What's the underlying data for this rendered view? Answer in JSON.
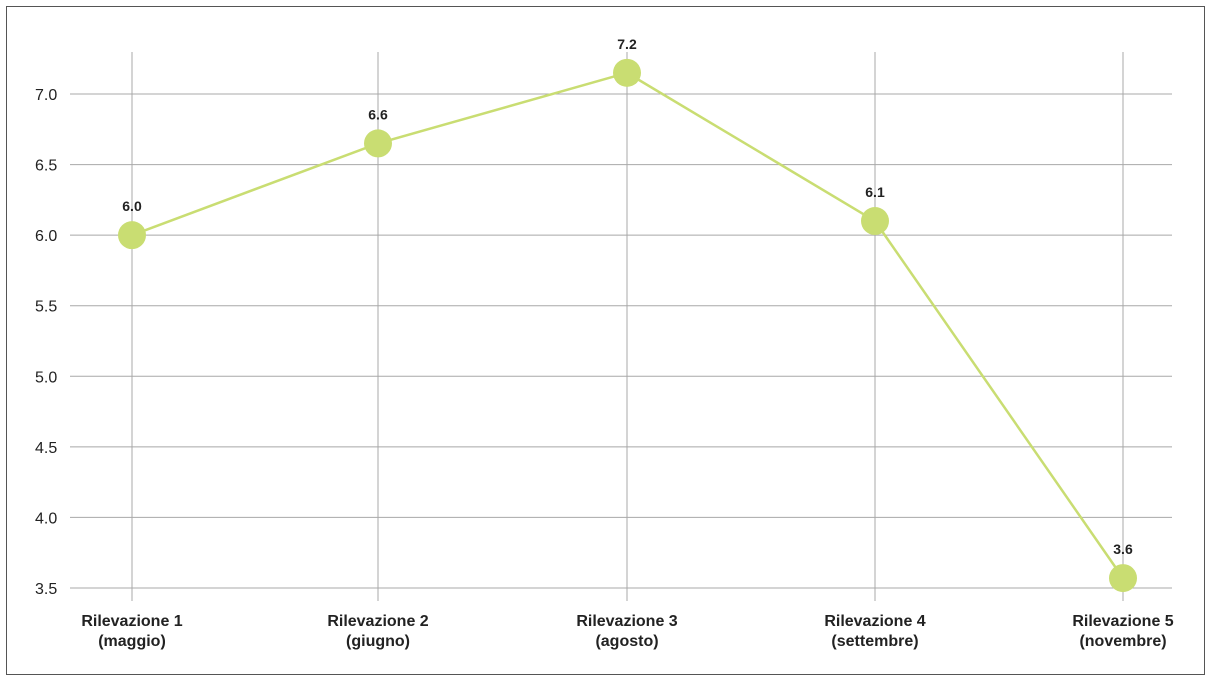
{
  "chart_data": {
    "type": "line",
    "categories": [
      [
        "Rilevazione 1",
        "(maggio)"
      ],
      [
        "Rilevazione 2",
        "(giugno)"
      ],
      [
        "Rilevazione 3",
        "(agosto)"
      ],
      [
        "Rilevazione 4",
        "(settembre)"
      ],
      [
        "Rilevazione 5",
        "(novembre)"
      ]
    ],
    "values": [
      6.0,
      6.65,
      7.15,
      6.1,
      3.57
    ],
    "data_labels": [
      "6.0",
      "6.6",
      "7.2",
      "6.1",
      "3.6"
    ],
    "y_ticks": [
      3.5,
      4.0,
      4.5,
      5.0,
      5.5,
      6.0,
      6.5,
      7.0
    ],
    "y_tick_labels": [
      "3.5",
      "4.0",
      "4.5",
      "5.0",
      "5.5",
      "6.0",
      "6.5",
      "7.0"
    ],
    "ylim": [
      3.45,
      7.7
    ],
    "grid": true,
    "title": "",
    "xlabel": "",
    "ylabel": "",
    "colors": {
      "line": "#c9dd72",
      "marker": "#c9dd72",
      "grid": "#a8a8a8"
    }
  }
}
